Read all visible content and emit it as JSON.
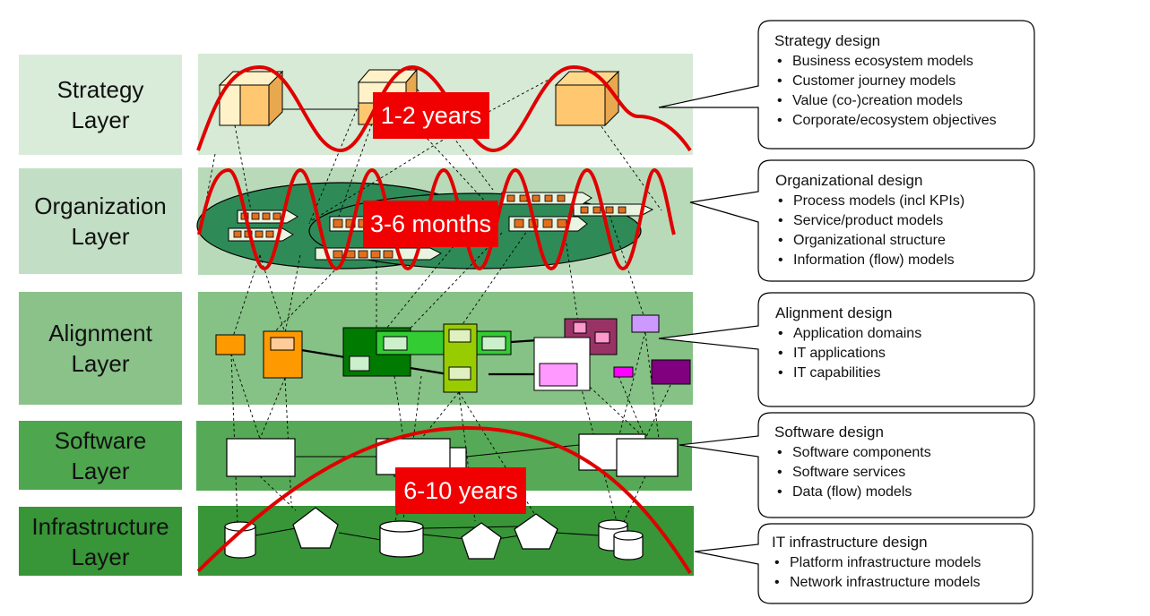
{
  "layers": [
    {
      "id": "strategy",
      "line1": "Strategy",
      "line2": "Layer",
      "label_color": "#d9ecd9",
      "band_color": "#d6ead6"
    },
    {
      "id": "organization",
      "line1": "Organization",
      "line2": "Layer",
      "label_color": "#c2dec4",
      "band_color": "#b9dab9"
    },
    {
      "id": "alignment",
      "line1": "Alignment",
      "line2": "Layer",
      "label_color": "#8ac28a",
      "band_color": "#86c186"
    },
    {
      "id": "software",
      "line1": "Software",
      "line2": "Layer",
      "label_color": "#4ea64e",
      "band_color": "#56a956"
    },
    {
      "id": "infrastructure",
      "line1": "Infrastructure",
      "line2": "Layer",
      "label_color": "#389538",
      "band_color": "#389538"
    }
  ],
  "badges": {
    "strategy": "1-2 years",
    "organization": "3-6 months",
    "infrastructure": "6-10 years"
  },
  "callouts": [
    {
      "id": "strategy",
      "title": "Strategy design",
      "items": [
        "Business ecosystem models",
        "Customer journey models",
        "Value (co-)creation models",
        "Corporate/ecosystem objectives"
      ]
    },
    {
      "id": "organization",
      "title": "Organizational design",
      "items": [
        "Process models (incl KPIs)",
        "Service/product models",
        "Organizational structure",
        "Information (flow) models"
      ]
    },
    {
      "id": "alignment",
      "title": "Alignment design",
      "items": [
        "Application domains",
        "IT applications",
        "IT capabilities"
      ]
    },
    {
      "id": "software",
      "title": "Software design",
      "items": [
        "Software components",
        "Software services",
        "Data (flow) models"
      ]
    },
    {
      "id": "infrastructure",
      "title": "IT infrastructure design",
      "items": [
        "Platform infrastructure models",
        "Network infrastructure models"
      ]
    }
  ],
  "colors": {
    "wave": "#e00000",
    "badge": "#f00000",
    "ellipse": "#2e8b57",
    "cube_front": "#ffc870",
    "cube_light": "#fff2c8",
    "orange": "#ff9900",
    "dark_green": "#007a00",
    "lime": "#99cc00",
    "plum": "#993366",
    "purple": "#800080",
    "magenta": "#ff00ff",
    "lavender": "#cc99ff"
  },
  "icons": [
    "cube-icon",
    "process-chevron-icon",
    "cylinder-icon",
    "pentagon-icon"
  ]
}
